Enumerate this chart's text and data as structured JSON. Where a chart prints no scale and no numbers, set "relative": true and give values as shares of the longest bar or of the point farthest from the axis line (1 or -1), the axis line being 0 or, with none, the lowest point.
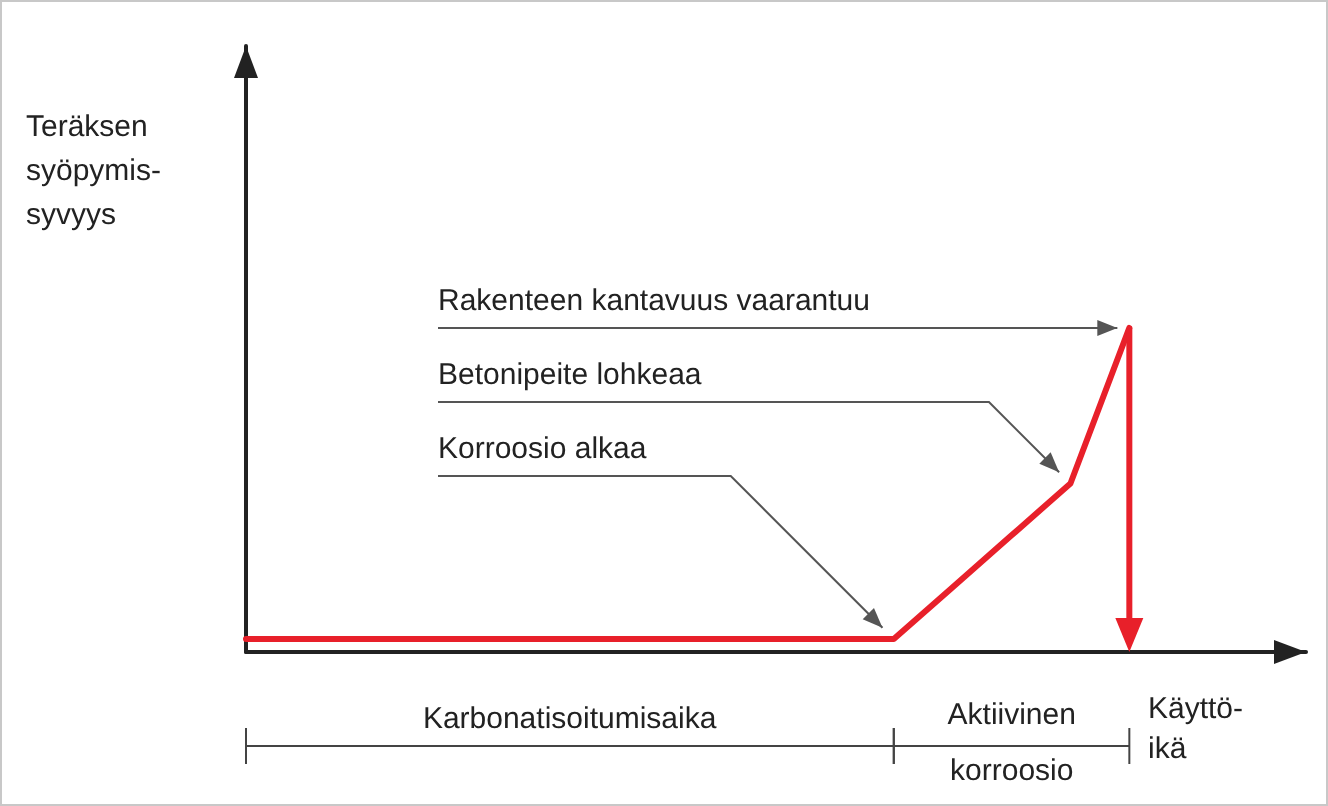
{
  "chart_data": {
    "type": "line",
    "relative": true,
    "ylabel": "Teräksen\nsyöpymis-\nsyvyys",
    "xlabel": "Käyttö-\nikä",
    "categories": [
      null,
      null,
      null,
      null,
      null,
      null,
      null,
      null,
      null,
      null,
      null,
      null,
      null,
      null,
      null,
      null,
      null,
      null,
      null
    ],
    "series": [
      {
        "color": "#e8202a",
        "values": [
          0.04,
          0.04,
          0.04,
          0.04,
          0.04,
          0.04,
          0.04,
          0.04,
          0.04,
          0.04,
          0.04,
          0.04,
          0.2,
          0.36,
          0.52,
          1,
          null,
          null,
          null
        ]
      }
    ],
    "marker": "none",
    "line_style": "solid",
    "annotations": [
      "Rakenteen kantavuus vaarantuu",
      "Betonipeite lohkeaa",
      "Korroosio alkaa",
      "Karbonatisoitumisaika",
      "Aktiivinen\nkorroosio"
    ]
  }
}
